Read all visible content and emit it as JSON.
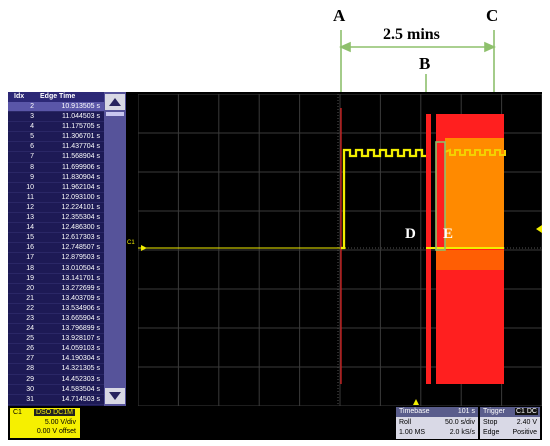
{
  "annotations": {
    "A": "A",
    "B": "B",
    "C": "C",
    "D": "D",
    "E": "E",
    "span_label": "2.5 mins"
  },
  "edge_table": {
    "col_idx": "Idx",
    "col_time": "Edge Time",
    "rows": [
      {
        "idx": "2",
        "time": "10.913505 s"
      },
      {
        "idx": "3",
        "time": "11.044503 s"
      },
      {
        "idx": "4",
        "time": "11.175705 s"
      },
      {
        "idx": "5",
        "time": "11.306701 s"
      },
      {
        "idx": "6",
        "time": "11.437704 s"
      },
      {
        "idx": "7",
        "time": "11.568904 s"
      },
      {
        "idx": "8",
        "time": "11.699906 s"
      },
      {
        "idx": "9",
        "time": "11.830904 s"
      },
      {
        "idx": "10",
        "time": "11.962104 s"
      },
      {
        "idx": "11",
        "time": "12.093100 s"
      },
      {
        "idx": "12",
        "time": "12.224101 s"
      },
      {
        "idx": "13",
        "time": "12.355304 s"
      },
      {
        "idx": "14",
        "time": "12.486300 s"
      },
      {
        "idx": "15",
        "time": "12.617303 s"
      },
      {
        "idx": "16",
        "time": "12.748507 s"
      },
      {
        "idx": "17",
        "time": "12.879503 s"
      },
      {
        "idx": "18",
        "time": "13.010504 s"
      },
      {
        "idx": "19",
        "time": "13.141701 s"
      },
      {
        "idx": "20",
        "time": "13.272699 s"
      },
      {
        "idx": "21",
        "time": "13.403709 s"
      },
      {
        "idx": "22",
        "time": "13.534906 s"
      },
      {
        "idx": "23",
        "time": "13.665904 s"
      },
      {
        "idx": "24",
        "time": "13.796899 s"
      },
      {
        "idx": "25",
        "time": "13.928107 s"
      },
      {
        "idx": "26",
        "time": "14.059103 s"
      },
      {
        "idx": "27",
        "time": "14.190304 s"
      },
      {
        "idx": "28",
        "time": "14.321305 s"
      },
      {
        "idx": "29",
        "time": "14.452303 s"
      },
      {
        "idx": "30",
        "time": "14.583504 s"
      },
      {
        "idx": "31",
        "time": "14.714503 s"
      }
    ]
  },
  "channel_marker": "C1",
  "ch1_box": {
    "name": "C1",
    "tags": "DSO DC1M",
    "vdiv": "5.00 V/div",
    "offset": "0.00 V offset"
  },
  "timebase": {
    "label": "Timebase",
    "value": "101 s",
    "mode": "Roll",
    "sdiv": "50.0 s/div",
    "samples": "1.00 MS",
    "rate": "2.0 kS/s"
  },
  "trigger": {
    "label": "Trigger",
    "tag": "C1 DC",
    "state": "Stop",
    "level": "2.40 V",
    "type": "Edge",
    "slope": "Positive"
  },
  "colors": {
    "trace": "#f2ee00",
    "burst_red": "#ff1f1f",
    "burst_orange": "#ff7a00",
    "green": "#8ec06c"
  }
}
